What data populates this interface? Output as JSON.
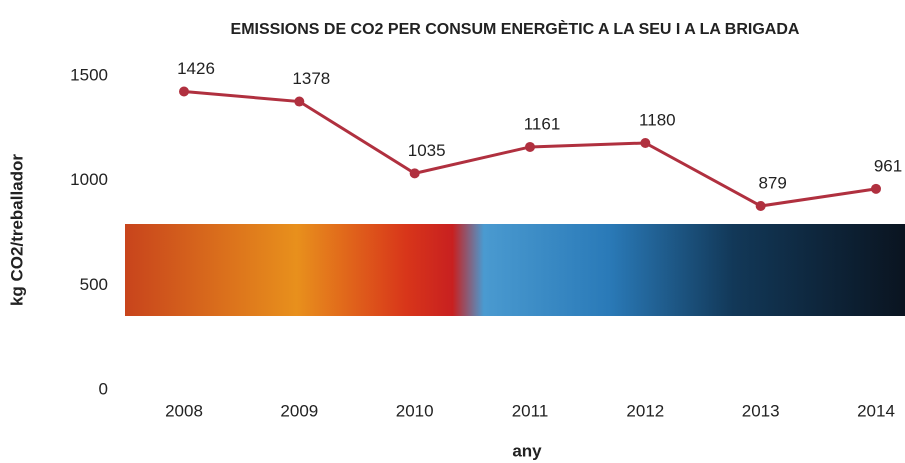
{
  "chart_data": {
    "type": "line",
    "title": "EMISSIONS DE CO2 PER CONSUM ENERGÈTIC A LA SEU I A LA BRIGADA",
    "x_label": "any",
    "y_label": "kg CO2/treballador",
    "categories": [
      "2008",
      "2009",
      "2010",
      "2011",
      "2012",
      "2013",
      "2014"
    ],
    "values": [
      1426,
      1378,
      1035,
      1161,
      1180,
      879,
      961
    ],
    "color": "#b0303f",
    "ylim": [
      0,
      1500
    ],
    "yticks": [
      0,
      500,
      1000,
      1500
    ],
    "grid": false
  }
}
